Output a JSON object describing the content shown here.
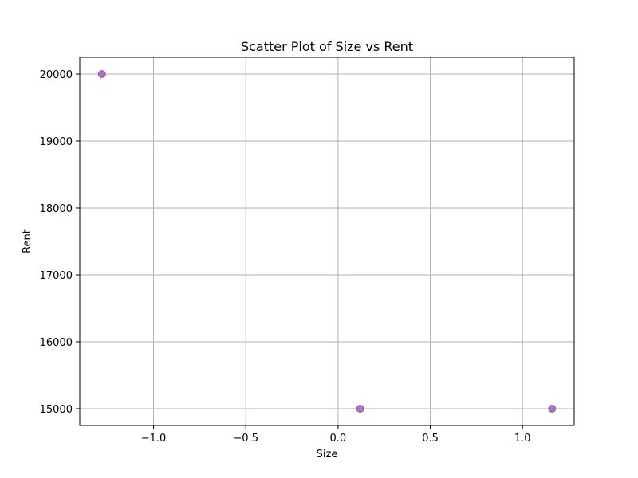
{
  "chart_data": {
    "type": "scatter",
    "title": "Scatter Plot of Size vs Rent",
    "xlabel": "Size",
    "ylabel": "Rent",
    "xlim": [
      -1.4,
      1.28
    ],
    "ylim": [
      14750,
      20250
    ],
    "xticks": [
      -1.0,
      -0.5,
      0.0,
      0.5,
      1.0
    ],
    "xtick_labels": [
      "−1.0",
      "−0.5",
      "0.0",
      "0.5",
      "1.0"
    ],
    "yticks": [
      15000,
      16000,
      17000,
      18000,
      19000,
      20000
    ],
    "ytick_labels": [
      "15000",
      "16000",
      "17000",
      "18000",
      "19000",
      "20000"
    ],
    "grid": true,
    "point_color": "#a05eb5",
    "series": [
      {
        "points": [
          {
            "x": -1.28,
            "y": 20000
          },
          {
            "x": 0.12,
            "y": 15000
          },
          {
            "x": 1.16,
            "y": 15000
          }
        ]
      }
    ]
  }
}
